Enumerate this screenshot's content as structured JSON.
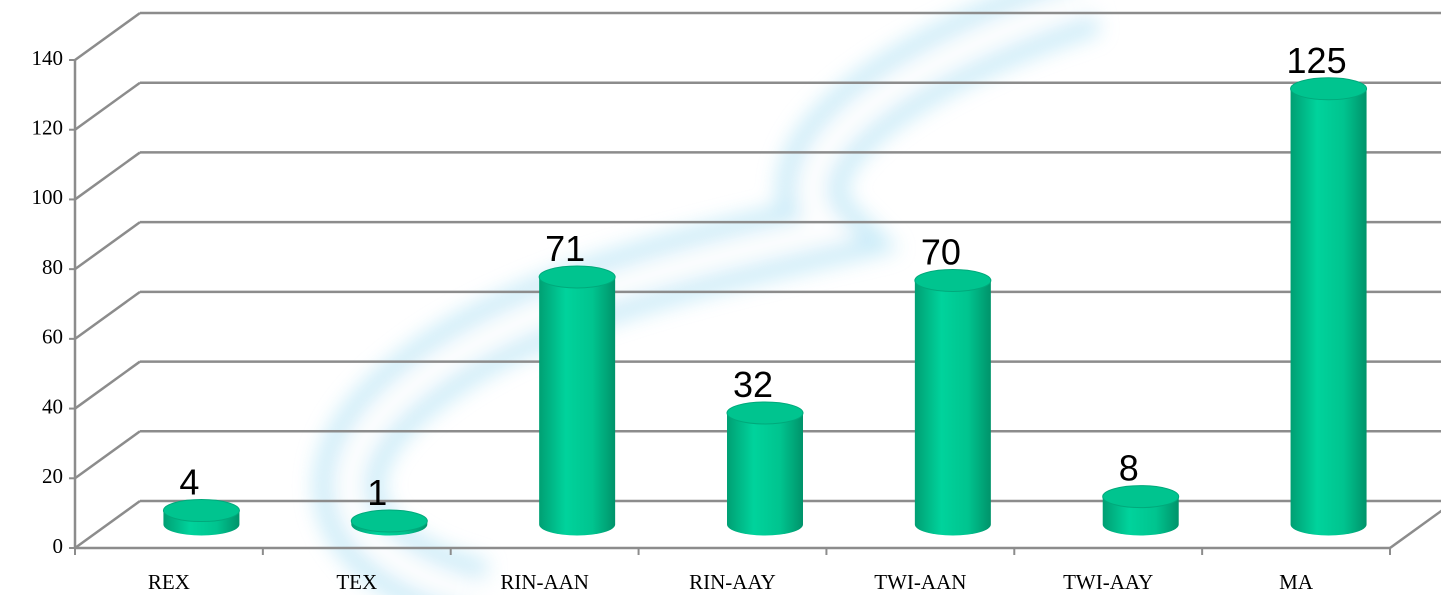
{
  "chart_data": {
    "type": "bar",
    "categories": [
      "REX",
      "TEX",
      "RIN-AAN",
      "RIN-AAY",
      "TWI-AAN",
      "TWI-AAY",
      "MA"
    ],
    "values": [
      4,
      1,
      71,
      32,
      70,
      8,
      125
    ],
    "color": "#00c48f",
    "ylim": [
      0,
      140
    ],
    "yticks": [
      0,
      20,
      40,
      60,
      80,
      100,
      120,
      140
    ],
    "grid": true
  }
}
